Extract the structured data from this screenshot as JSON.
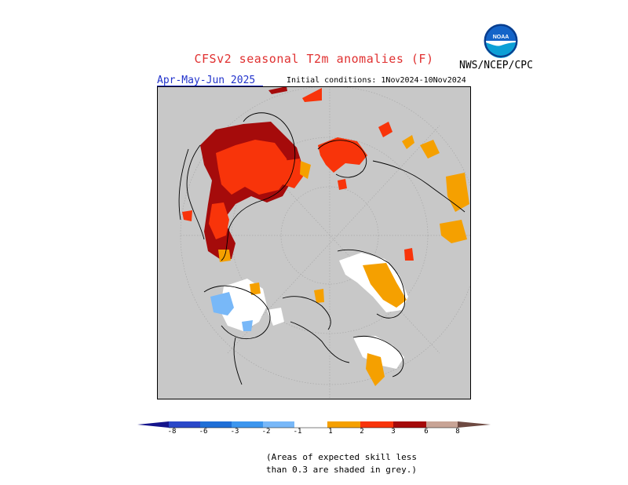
{
  "header": {
    "title": "CFSv2 seasonal T2m anomalies (F)",
    "agency": "NWS/NCEP/CPC",
    "logo_text": "NOAA",
    "season": "Apr-May-Jun 2025",
    "initial_conditions": "Initial conditions: 1Nov2024-10Nov2024"
  },
  "colorbar": {
    "labels": [
      "-8",
      "-6",
      "-3",
      "-2",
      "-1",
      "1",
      "2",
      "3",
      "6",
      "8"
    ],
    "colors": [
      "#14148c",
      "#2a48c8",
      "#1f6fd6",
      "#3c96ee",
      "#78b8f8",
      "#ffffff",
      "#f5a000",
      "#f8340a",
      "#a50b0b",
      "#c8a496",
      "#6e4a42"
    ]
  },
  "map": {
    "projection": "north-polar-stereographic",
    "mask_color": "#c8c8c8",
    "warm_colors": {
      "1-2": "#f5a000",
      "2-3": "#f8340a",
      "3-6": "#a50b0b"
    },
    "cool_colors": {
      "-2--1": "#78b8f8"
    }
  },
  "footer": {
    "note_line1": "(Areas of expected skill less",
    "note_line2": "than 0.3 are shaded in grey.)"
  }
}
